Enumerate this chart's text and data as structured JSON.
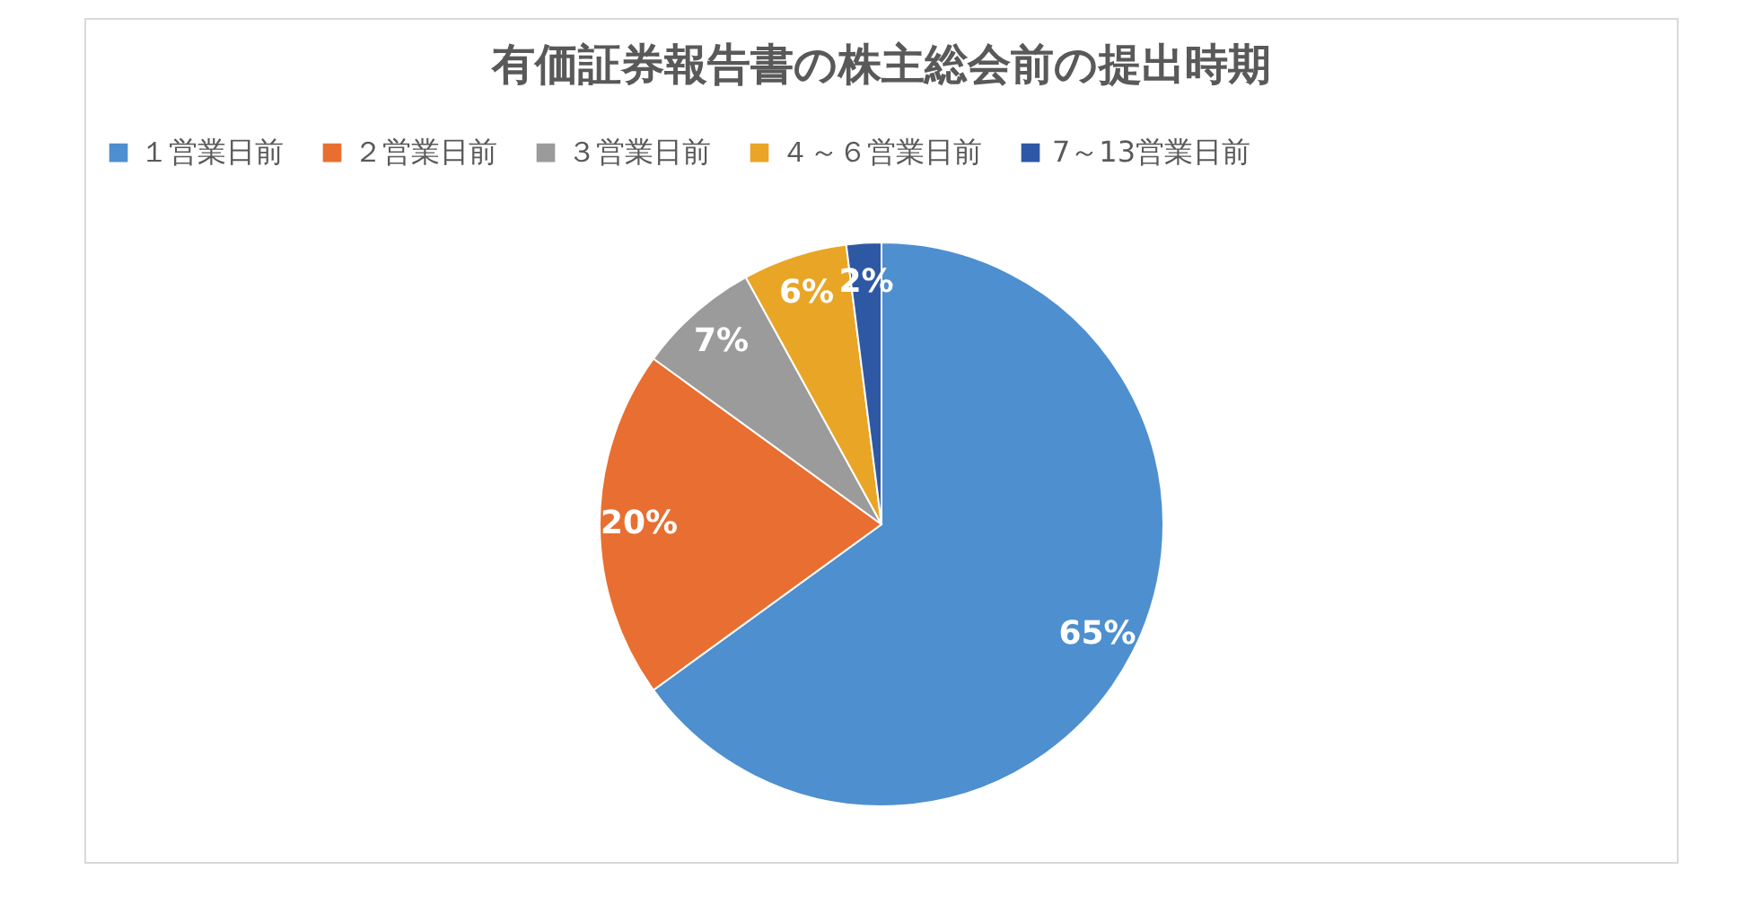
{
  "chart_data": {
    "type": "pie",
    "title": "有価証券報告書の株主総会前の提出時期",
    "categories": [
      "１営業日前",
      "２営業日前",
      "３営業日前",
      "４～６営業日前",
      "7～13営業日前"
    ],
    "values": [
      65,
      20,
      7,
      6,
      2
    ],
    "colors": [
      "#4e8fcf",
      "#e86f31",
      "#9b9b9b",
      "#e9a526",
      "#2f58a4"
    ],
    "value_labels": [
      "65%",
      "20%",
      "7%",
      "6%",
      "2%"
    ],
    "legend": "top"
  }
}
